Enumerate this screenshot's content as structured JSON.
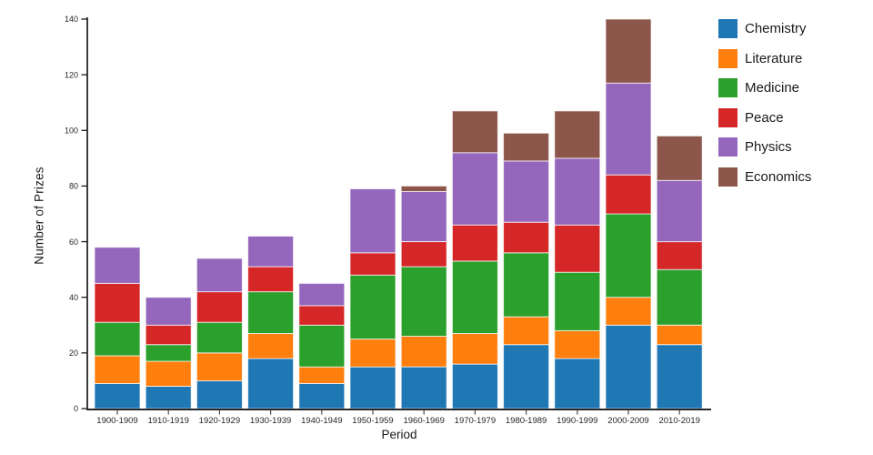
{
  "figure": {
    "background": "#ffffff",
    "axis_color": "#1a1a1a",
    "text_color": "#262626"
  },
  "chart_data": {
    "type": "bar",
    "stacked": true,
    "title": "",
    "xlabel": "Period",
    "ylabel": "Number of Prizes",
    "ylim": [
      0,
      140
    ],
    "yticks": [
      0,
      20,
      40,
      60,
      80,
      100,
      120,
      140
    ],
    "grid": false,
    "legend_position": "upper-right-outside",
    "bar_edge_color": "rgba(255,255,255,0.7)",
    "categories": [
      "1900-1909",
      "1910-1919",
      "1920-1929",
      "1930-1939",
      "1940-1949",
      "1950-1959",
      "1960-1969",
      "1970-1979",
      "1980-1989",
      "1990-1999",
      "2000-2009",
      "2010-2019"
    ],
    "series": [
      {
        "name": "Chemistry",
        "color": "#1f77b4",
        "values": [
          9,
          8,
          10,
          18,
          9,
          15,
          15,
          16,
          23,
          18,
          30,
          23
        ]
      },
      {
        "name": "Literature",
        "color": "#ff7f0e",
        "values": [
          10,
          9,
          10,
          9,
          6,
          10,
          11,
          11,
          10,
          10,
          10,
          7
        ]
      },
      {
        "name": "Medicine",
        "color": "#2ca02c",
        "values": [
          12,
          6,
          11,
          15,
          15,
          23,
          25,
          26,
          23,
          21,
          30,
          20
        ]
      },
      {
        "name": "Peace",
        "color": "#d62728",
        "values": [
          14,
          7,
          11,
          9,
          7,
          8,
          9,
          13,
          11,
          17,
          14,
          10
        ]
      },
      {
        "name": "Physics",
        "color": "#9467bd",
        "values": [
          13,
          10,
          12,
          11,
          8,
          23,
          18,
          26,
          22,
          24,
          33,
          22
        ]
      },
      {
        "name": "Economics",
        "color": "#8c564b",
        "values": [
          0,
          0,
          0,
          0,
          0,
          0,
          2,
          15,
          10,
          17,
          23,
          16
        ]
      }
    ],
    "totals": [
      58,
      40,
      54,
      62,
      45,
      79,
      80,
      107,
      99,
      107,
      140,
      98
    ]
  }
}
